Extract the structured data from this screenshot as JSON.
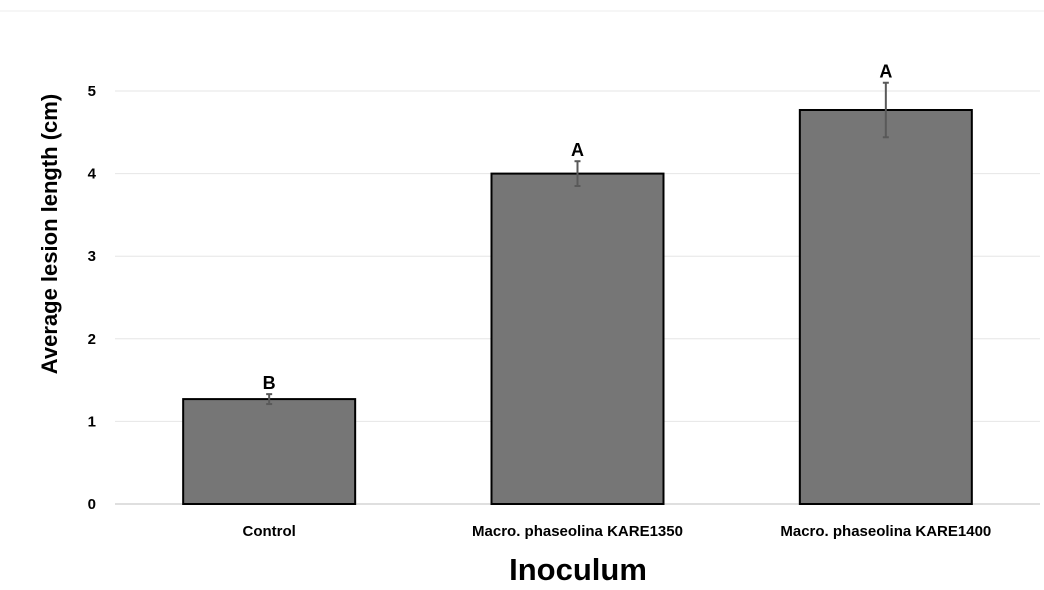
{
  "chart_data": {
    "type": "bar",
    "title": "",
    "xlabel": "Inoculum",
    "ylabel": "Average lesion length (cm)",
    "ylim": [
      0,
      5
    ],
    "yticks": [
      "0",
      "1",
      "2",
      "3",
      "4",
      "5"
    ],
    "grid": true,
    "categories": [
      "Control",
      "Macro. phaseolina KARE1350",
      "Macro. phaseolina KARE1400"
    ],
    "values": [
      1.27,
      4.0,
      4.77
    ],
    "error": [
      0.06,
      0.15,
      0.33
    ],
    "significance_labels": [
      "B",
      "A",
      "A"
    ],
    "colors": {
      "bar_fill": "#767676",
      "bar_outline": "#000000",
      "error_bar": "#595959"
    }
  }
}
